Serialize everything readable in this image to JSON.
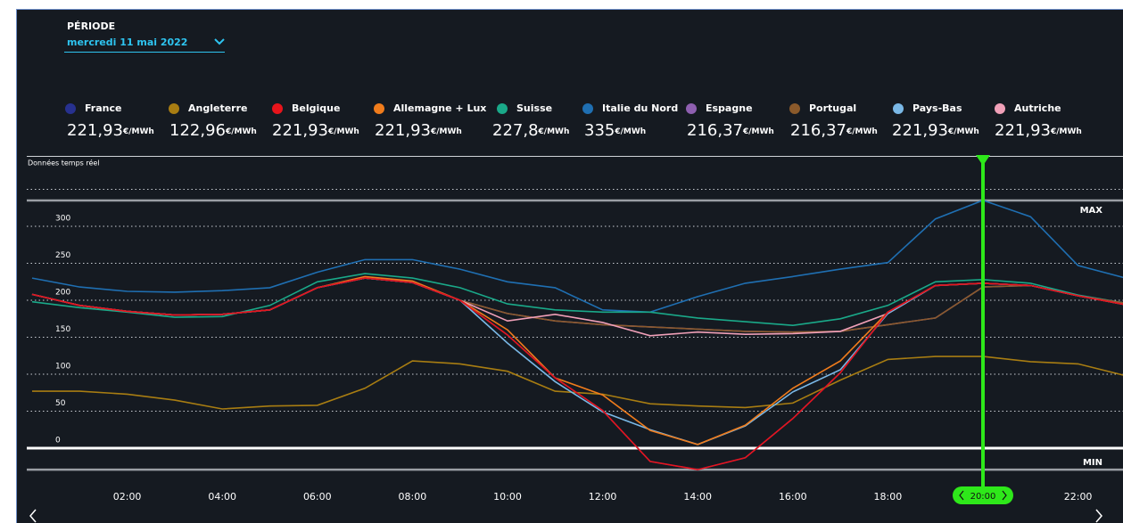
{
  "chart_data": {
    "type": "line",
    "period_label": "PÉRIODE",
    "date": "mercredi 11 mai 2022",
    "subtitle": "Données temps réel",
    "unit": "€/MWh",
    "max_label": "MAX",
    "min_label": "MIN",
    "categories": [
      null,
      null,
      "02:00",
      null,
      "04:00",
      null,
      "06:00",
      null,
      "08:00",
      null,
      "10:00",
      null,
      "12:00",
      null,
      "14:00",
      null,
      "16:00",
      null,
      "18:00",
      null,
      "20:00",
      null,
      "22:00",
      null
    ],
    "cursor_index": 20,
    "ylim": [
      -50,
      400
    ],
    "yticks": [
      0,
      50,
      100,
      150,
      200,
      250,
      300
    ],
    "ygrid": [
      50,
      100,
      150,
      200,
      250,
      300,
      350
    ],
    "series": [
      {
        "name": "France",
        "color": "#27318f",
        "current": 221.93,
        "current_label": "221,93",
        "values": [
          208,
          193,
          185,
          180,
          181,
          187,
          217,
          230,
          224,
          200,
          153,
          95,
          51,
          -18,
          -29,
          -13,
          40,
          102,
          184,
          220,
          223,
          220,
          206,
          194
        ]
      },
      {
        "name": "Angleterre",
        "color": "#a87d12",
        "current": 122.96,
        "current_label": "122,96",
        "values": [
          77,
          77,
          73,
          65,
          53,
          57,
          58,
          81,
          118,
          114,
          104,
          77,
          73,
          60,
          57,
          55,
          61,
          92,
          120,
          124,
          124,
          117,
          114,
          98
        ]
      },
      {
        "name": "Belgique",
        "color": "#e8141b",
        "current": 221.93,
        "current_label": "221,93",
        "values": [
          208,
          193,
          185,
          180,
          181,
          187,
          217,
          230,
          224,
          200,
          153,
          95,
          51,
          -18,
          -29,
          -13,
          40,
          102,
          184,
          220,
          223,
          220,
          206,
          194
        ]
      },
      {
        "name": "Allemagne + Lux",
        "color": "#f07c1c",
        "current": 221.93,
        "current_label": "221,93",
        "values": [
          208,
          193,
          185,
          180,
          181,
          187,
          217,
          232,
          226,
          200,
          160,
          95,
          72,
          24,
          5,
          31,
          81,
          118,
          184,
          220,
          223,
          220,
          206,
          194
        ]
      },
      {
        "name": "Suisse",
        "color": "#1aa989",
        "current": 227.8,
        "current_label": "227,8",
        "values": [
          198,
          190,
          184,
          177,
          178,
          193,
          225,
          236,
          230,
          217,
          195,
          187,
          184,
          184,
          176,
          171,
          166,
          175,
          193,
          225,
          228,
          223,
          207,
          196
        ]
      },
      {
        "name": "Italie du Nord",
        "color": "#1f6fb2",
        "current": 335,
        "current_label": "335",
        "values": [
          230,
          218,
          212,
          211,
          213,
          217,
          238,
          255,
          255,
          242,
          225,
          217,
          187,
          184,
          205,
          223,
          232,
          242,
          251,
          310,
          335,
          313,
          247,
          230
        ]
      },
      {
        "name": "Espagne",
        "color": "#8e5fb0",
        "current": 216.37,
        "current_label": "216,37",
        "values": [
          208,
          193,
          185,
          180,
          181,
          187,
          217,
          230,
          224,
          200,
          182,
          172,
          167,
          164,
          161,
          158,
          157,
          158,
          167,
          176,
          218,
          220,
          206,
          196
        ]
      },
      {
        "name": "Portugal",
        "color": "#8b5a2b",
        "current": 216.37,
        "current_label": "216,37",
        "values": [
          208,
          193,
          185,
          180,
          181,
          187,
          217,
          230,
          224,
          200,
          182,
          172,
          167,
          164,
          161,
          158,
          157,
          158,
          167,
          176,
          218,
          220,
          206,
          196
        ]
      },
      {
        "name": "Pays-Bas",
        "color": "#7ab8e6",
        "current": 221.93,
        "current_label": "221,93",
        "values": [
          208,
          193,
          185,
          180,
          181,
          187,
          217,
          230,
          224,
          200,
          142,
          90,
          49,
          25,
          5,
          30,
          76,
          106,
          182,
          220,
          223,
          220,
          206,
          194
        ]
      },
      {
        "name": "Autriche",
        "color": "#f0a0b8",
        "current": 221.93,
        "current_label": "221,93",
        "values": [
          208,
          193,
          185,
          180,
          181,
          187,
          217,
          230,
          224,
          200,
          172,
          181,
          170,
          152,
          157,
          154,
          155,
          158,
          182,
          220,
          223,
          220,
          206,
          194
        ]
      }
    ]
  }
}
